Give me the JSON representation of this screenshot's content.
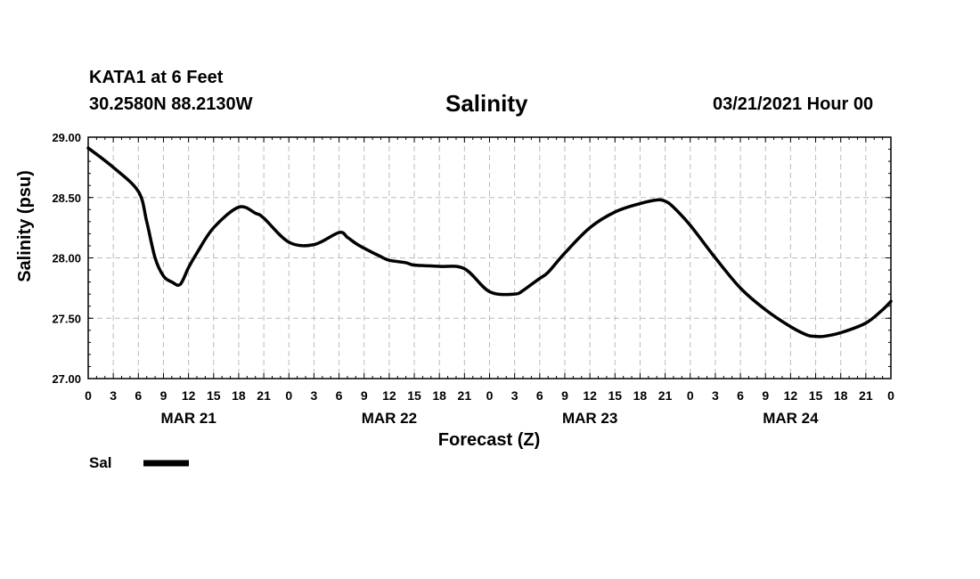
{
  "chart_data": {
    "type": "line",
    "header": {
      "station": "KATA1 at 6 Feet",
      "location": "30.2580N 88.2130W",
      "title": "Salinity",
      "datetime": "03/21/2021 Hour 00"
    },
    "ylabel": "Salinity (psu)",
    "xlabel": "Forecast (Z)",
    "ylim": [
      27.0,
      29.0
    ],
    "xlim": [
      0,
      96
    ],
    "yticks": [
      "27.00",
      "27.50",
      "28.00",
      "28.50",
      "29.00"
    ],
    "ytick_values": [
      27.0,
      27.5,
      28.0,
      28.5,
      29.0
    ],
    "xtick_labels": [
      "0",
      "3",
      "6",
      "9",
      "12",
      "15",
      "18",
      "21",
      "0",
      "3",
      "6",
      "9",
      "12",
      "15",
      "18",
      "21",
      "0",
      "3",
      "6",
      "9",
      "12",
      "15",
      "18",
      "21",
      "0",
      "3",
      "6",
      "9",
      "12",
      "15",
      "18",
      "21",
      "0"
    ],
    "day_labels": [
      {
        "label": "MAR 21",
        "hour": 12
      },
      {
        "label": "MAR 22",
        "hour": 36
      },
      {
        "label": "MAR 23",
        "hour": 60
      },
      {
        "label": "MAR 24",
        "hour": 84
      }
    ],
    "grid": true,
    "legend": {
      "label": "Sal",
      "placement": "bottom-left"
    },
    "series": [
      {
        "name": "Sal",
        "color": "#000000",
        "x": [
          0,
          3,
          6,
          7,
          8,
          9,
          10,
          11,
          12,
          13,
          15,
          18,
          20,
          21,
          24,
          27,
          30,
          31,
          32,
          33,
          35,
          36,
          38,
          39,
          42,
          45,
          48,
          51,
          52,
          53,
          54,
          55,
          57,
          60,
          63,
          66,
          68,
          69,
          70,
          72,
          75,
          78,
          81,
          84,
          86,
          87,
          88,
          90,
          93,
          95,
          96
        ],
        "values": [
          28.91,
          28.75,
          28.55,
          28.3,
          28.0,
          27.85,
          27.8,
          27.78,
          27.92,
          28.04,
          28.25,
          28.42,
          28.37,
          28.33,
          28.13,
          28.11,
          28.21,
          28.17,
          28.12,
          28.08,
          28.01,
          27.98,
          27.96,
          27.94,
          27.93,
          27.91,
          27.72,
          27.7,
          27.73,
          27.78,
          27.83,
          27.88,
          28.04,
          28.25,
          28.38,
          28.45,
          28.48,
          28.47,
          28.42,
          28.27,
          28.0,
          27.75,
          27.57,
          27.43,
          27.36,
          27.35,
          27.35,
          27.38,
          27.46,
          27.57,
          27.64
        ]
      }
    ]
  }
}
